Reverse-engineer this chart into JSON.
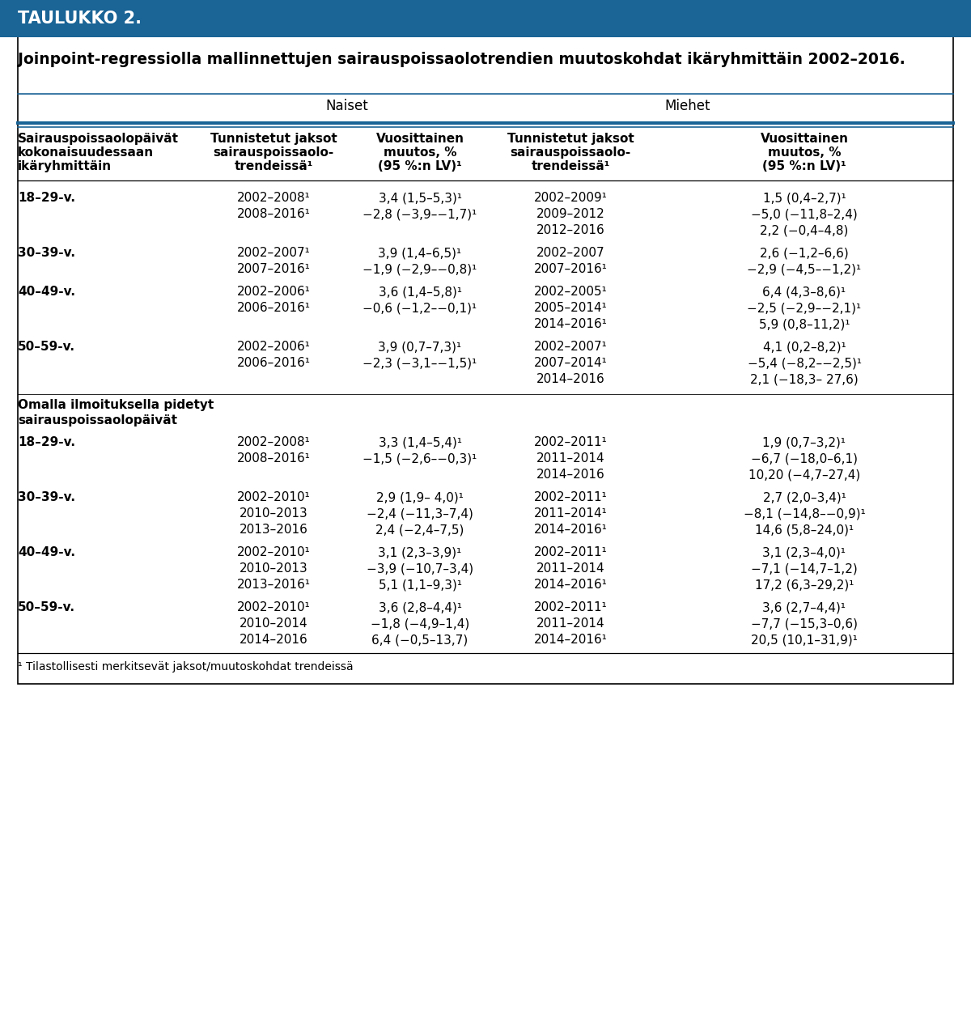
{
  "title_box": "TAULUKKO 2.",
  "title_box_bg": "#1a6496",
  "subtitle": "Joinpoint-regressiolla mallinnettujen sairauspoissaolotrendien muutoskohdat ikäryhmittäin 2002–2016.",
  "header_naiset": "Naiset",
  "header_miehet": "Miehet",
  "col_headers": [
    "Tunnistetut jaksot\nsairauspoissaolo-\ntrendeissä¹",
    "Vuosittainen\nmuutos, %\n(95 %:n LV)¹",
    "Tunnistetut jaksot\nsairauspoissaolo-\ntrendeissä¹",
    "Vuosittainen\nmuutos, %\n(95 %:n LV)¹"
  ],
  "row_header_col0": "Sairauspoissaolopäivät\nkokonaisuudessaan\nikäryhmittäin",
  "footnote": "¹ Tilastollisesti merkitsevät jaksot/muutoskohdat trendeissä",
  "sections": [
    {
      "section_header": "Sairauspoissaolopäivät\nkokonaisuudessaan\nikäryhmittäin",
      "rows": [
        {
          "age": "18–29-v.",
          "naiset_jaksot": [
            "2002–2008¹",
            "2008–2016¹"
          ],
          "naiset_muutos": [
            "3,4 (1,5–5,3)¹",
            "−2,8 (−3,9–−1,7)¹"
          ],
          "miehet_jaksot": [
            "2002–2009¹",
            "2009–2012",
            "2012–2016"
          ],
          "miehet_muutos": [
            "1,5 (0,4–2,7)¹",
            "−5,0 (−11,8–2,4)",
            "2,2 (−0,4–4,8)"
          ]
        },
        {
          "age": "30–39-v.",
          "naiset_jaksot": [
            "2002–2007¹",
            "2007–2016¹"
          ],
          "naiset_muutos": [
            "3,9 (1,4–6,5)¹",
            "−1,9 (−2,9–−0,8)¹"
          ],
          "miehet_jaksot": [
            "2002–2007",
            "2007–2016¹"
          ],
          "miehet_muutos": [
            "2,6 (−1,2–6,6)",
            "−2,9 (−4,5–−1,2)¹"
          ]
        },
        {
          "age": "40–49-v.",
          "naiset_jaksot": [
            "2002–2006¹",
            "2006–2016¹"
          ],
          "naiset_muutos": [
            "3,6 (1,4–5,8)¹",
            "−0,6 (−1,2–−0,1)¹"
          ],
          "miehet_jaksot": [
            "2002–2005¹",
            "2005–2014¹",
            "2014–2016¹"
          ],
          "miehet_muutos": [
            "6,4 (4,3–8,6)¹",
            "−2,5 (−2,9–−2,1)¹",
            "5,9 (0,8–11,2)¹"
          ]
        },
        {
          "age": "50–59-v.",
          "naiset_jaksot": [
            "2002–2006¹",
            "2006–2016¹"
          ],
          "naiset_muutos": [
            "3,9 (0,7–7,3)¹",
            "−2,3 (−3,1–−1,5)¹"
          ],
          "miehet_jaksot": [
            "2002–2007¹",
            "2007–2014¹",
            "2014–2016"
          ],
          "miehet_muutos": [
            "4,1 (0,2–8,2)¹",
            "−5,4 (−8,2–−2,5)¹",
            "2,1 (−18,3– 27,6)"
          ]
        }
      ]
    },
    {
      "section_header": "Omalla ilmoituksella pidetyt\nsairauspoissaolopäivät",
      "rows": [
        {
          "age": "18–29-v.",
          "naiset_jaksot": [
            "2002–2008¹",
            "2008–2016¹"
          ],
          "naiset_muutos": [
            "3,3 (1,4–5,4)¹",
            "−1,5 (−2,6–−0,3)¹"
          ],
          "miehet_jaksot": [
            "2002–2011¹",
            "2011–2014",
            "2014–2016"
          ],
          "miehet_muutos": [
            "1,9 (0,7–3,2)¹",
            "−6,7 (−18,0–6,1)",
            "10,20 (−4,7–27,4)"
          ]
        },
        {
          "age": "30–39-v.",
          "naiset_jaksot": [
            "2002–2010¹",
            "2010–2013",
            "2013–2016"
          ],
          "naiset_muutos": [
            "2,9 (1,9– 4,0)¹",
            "−2,4 (−11,3–7,4)",
            "2,4 (−2,4–7,5)"
          ],
          "miehet_jaksot": [
            "2002–2011¹",
            "2011–2014¹",
            "2014–2016¹"
          ],
          "miehet_muutos": [
            "2,7 (2,0–3,4)¹",
            "−8,1 (−14,8–−0,9)¹",
            "14,6 (5,8–24,0)¹"
          ]
        },
        {
          "age": "40–49-v.",
          "naiset_jaksot": [
            "2002–2010¹",
            "2010–2013",
            "2013–2016¹"
          ],
          "naiset_muutos": [
            "3,1 (2,3–3,9)¹",
            "−3,9 (−10,7–3,4)",
            "5,1 (1,1–9,3)¹"
          ],
          "miehet_jaksot": [
            "2002–2011¹",
            "2011–2014",
            "2014–2016¹"
          ],
          "miehet_muutos": [
            "3,1 (2,3–4,0)¹",
            "−7,1 (−14,7–1,2)",
            "17,2 (6,3–29,2)¹"
          ]
        },
        {
          "age": "50–59-v.",
          "naiset_jaksot": [
            "2002–2010¹",
            "2010–2014",
            "2014–2016"
          ],
          "naiset_muutos": [
            "3,6 (2,8–4,4)¹",
            "−1,8 (−4,9–1,4)",
            "6,4 (−0,5–13,7)"
          ],
          "miehet_jaksot": [
            "2002–2011¹",
            "2011–2014",
            "2014–2016¹"
          ],
          "miehet_muutos": [
            "3,6 (2,7–4,4)¹",
            "−7,7 (−15,3–0,6)",
            "20,5 (10,1–31,9)¹"
          ]
        }
      ]
    }
  ]
}
